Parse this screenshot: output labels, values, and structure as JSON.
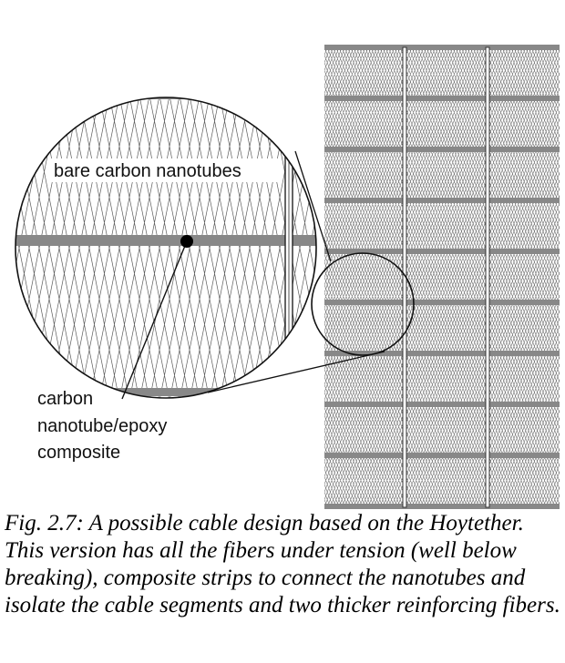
{
  "figure": {
    "labels": {
      "bare_nanotubes": "bare carbon nanotubes",
      "composite_line1": "carbon",
      "composite_line2": "nanotube/epoxy",
      "composite_line3": "composite"
    },
    "colors": {
      "strip": "#888888",
      "tube": "#4a4a4a",
      "fiber": "#333333",
      "background": "#ffffff"
    }
  },
  "caption": {
    "text": "Fig. 2.7: A possible cable design based on the Hoytether.  This version has all the fibers under tension (well below breaking), composite strips to connect the nanotubes and isolate the cable segments and two thicker reinforcing fibers."
  }
}
